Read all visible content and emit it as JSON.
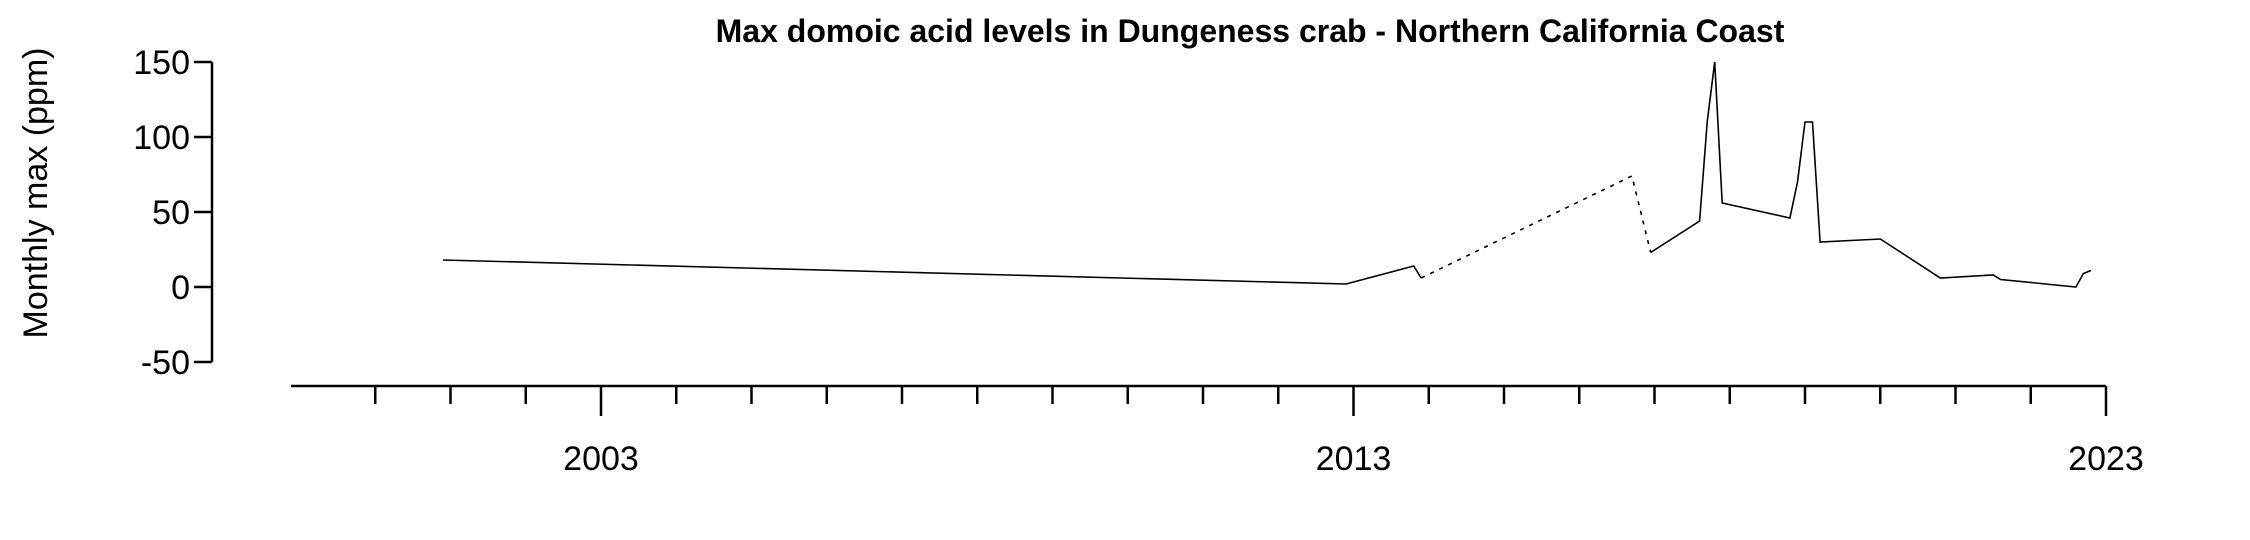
{
  "chart_data": {
    "type": "line",
    "title": "Max domoic acid levels in Dungeness crab - Northern California Coast",
    "xlabel": "",
    "ylabel": "Monthly max (ppm)",
    "xlim": [
      1999,
      2023
    ],
    "ylim": [
      -50,
      150
    ],
    "y_ticks": [
      -50,
      0,
      50,
      100,
      150
    ],
    "x_major_ticks": [
      2003,
      2013,
      2023
    ],
    "x_minor_ticks": [
      2000,
      2001,
      2002,
      2004,
      2005,
      2006,
      2007,
      2008,
      2009,
      2010,
      2011,
      2012,
      2014,
      2015,
      2016,
      2017,
      2018,
      2019,
      2020,
      2021,
      2022
    ],
    "grid": false,
    "legend": "none",
    "series": [
      {
        "style": "solid",
        "x": [
          2000.9,
          2012.9
        ],
        "y": [
          18,
          2
        ]
      },
      {
        "style": "solid",
        "x": [
          2012.9,
          2013.8,
          2013.9
        ],
        "y": [
          2,
          14,
          6
        ]
      },
      {
        "style": "dotted",
        "x": [
          2013.9,
          2016.7,
          2016.95
        ],
        "y": [
          6,
          74,
          23
        ]
      },
      {
        "style": "solid",
        "x": [
          2016.95,
          2017.6,
          2017.7,
          2017.8,
          2017.9,
          2018.8,
          2018.9,
          2019.0,
          2019.1,
          2019.2,
          2020.0,
          2020.8,
          2021.5,
          2021.6,
          2022.6,
          2022.7,
          2022.8
        ],
        "y": [
          23,
          44,
          110,
          150,
          56,
          46,
          70,
          110,
          110,
          30,
          32,
          6,
          8,
          5,
          0,
          9,
          11
        ]
      }
    ]
  }
}
